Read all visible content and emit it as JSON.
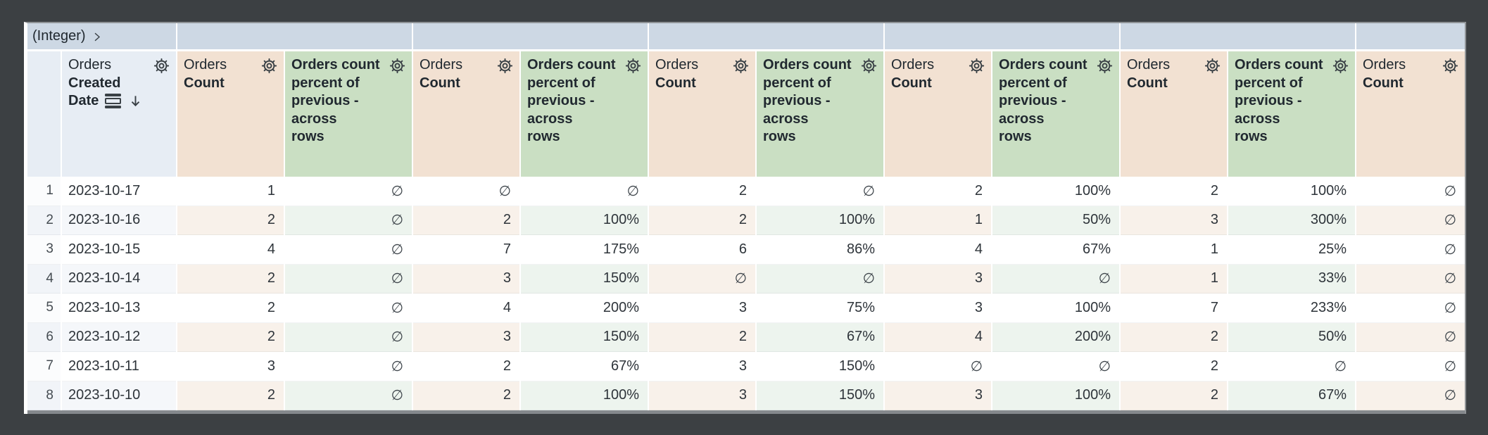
{
  "pivot_header": {
    "label": "(Integer)"
  },
  "table": {
    "column_kinds": [
      "rownum",
      "dimension",
      "measure",
      "calc",
      "measure",
      "calc",
      "measure",
      "calc",
      "measure",
      "calc",
      "measure",
      "calc",
      "measure"
    ],
    "dimension_header": {
      "view": "Orders",
      "field_lines": [
        "Created",
        "Date"
      ],
      "sort": "desc"
    },
    "measure_header": {
      "view": "Orders",
      "field": "Count"
    },
    "calc_header": {
      "full": "Orders count percent of previous - across rows",
      "lines": [
        "Orders count",
        "percent of",
        "previous -",
        "across",
        "rows"
      ]
    },
    "null_symbol": "∅",
    "rows": [
      {
        "n": "1",
        "date": "2023-10-17",
        "values": [
          "1",
          "∅",
          "∅",
          "∅",
          "2",
          "∅",
          "2",
          "100%",
          "2",
          "100%",
          "∅"
        ]
      },
      {
        "n": "2",
        "date": "2023-10-16",
        "values": [
          "2",
          "∅",
          "2",
          "100%",
          "2",
          "100%",
          "1",
          "50%",
          "3",
          "300%",
          "∅"
        ]
      },
      {
        "n": "3",
        "date": "2023-10-15",
        "values": [
          "4",
          "∅",
          "7",
          "175%",
          "6",
          "86%",
          "4",
          "67%",
          "1",
          "25%",
          "∅"
        ]
      },
      {
        "n": "4",
        "date": "2023-10-14",
        "values": [
          "2",
          "∅",
          "3",
          "150%",
          "∅",
          "∅",
          "3",
          "∅",
          "1",
          "33%",
          "∅"
        ]
      },
      {
        "n": "5",
        "date": "2023-10-13",
        "values": [
          "2",
          "∅",
          "4",
          "200%",
          "3",
          "75%",
          "3",
          "100%",
          "7",
          "233%",
          "∅"
        ]
      },
      {
        "n": "6",
        "date": "2023-10-12",
        "values": [
          "2",
          "∅",
          "3",
          "150%",
          "2",
          "67%",
          "4",
          "200%",
          "2",
          "50%",
          "∅"
        ]
      },
      {
        "n": "7",
        "date": "2023-10-11",
        "values": [
          "3",
          "∅",
          "2",
          "67%",
          "3",
          "150%",
          "∅",
          "∅",
          "2",
          "∅",
          "∅"
        ]
      },
      {
        "n": "8",
        "date": "2023-10-10",
        "values": [
          "2",
          "∅",
          "2",
          "100%",
          "3",
          "150%",
          "3",
          "100%",
          "2",
          "67%",
          "∅"
        ]
      }
    ]
  },
  "colors": {
    "background": "#3c4043",
    "band": "#cdd8e4",
    "header_dim": "#e7edf4",
    "header_measure": "#f2e1d2",
    "header_calc": "#cadfc3",
    "stripe_rownum": "#f1f4f8",
    "stripe_dim": "#f5f7fa",
    "stripe_measure": "#f8f1ea",
    "stripe_calc": "#edf4ee"
  }
}
